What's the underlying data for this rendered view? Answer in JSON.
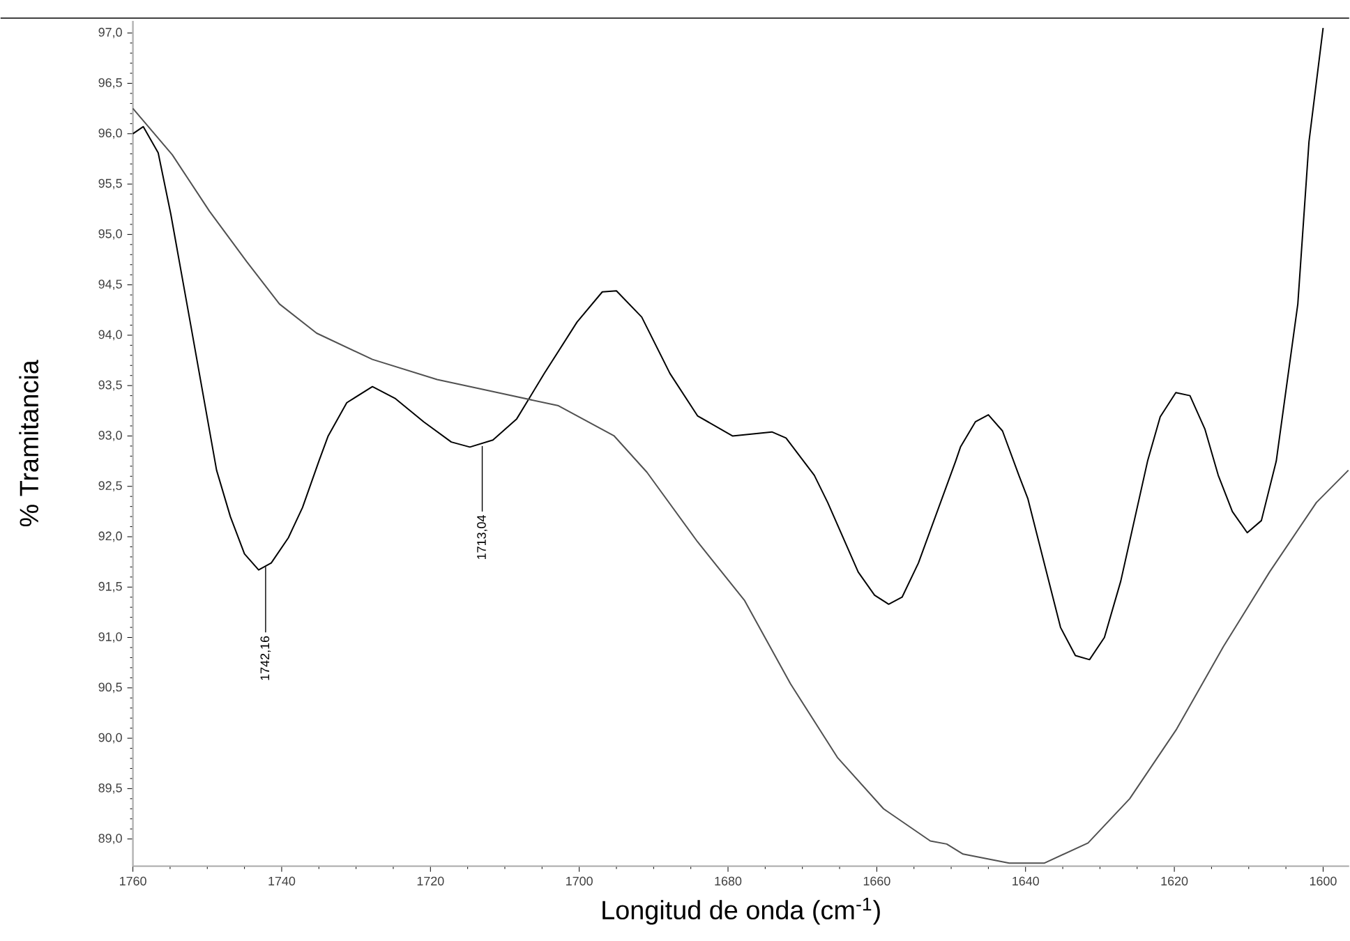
{
  "chart_data": {
    "type": "line",
    "xlabel": "Longitud de onda (cm$^{-1}$)",
    "ylabel": "% Tramitancia",
    "xlim": [
      1760,
      1596.5
    ],
    "ylim": [
      88.73,
      97.12
    ],
    "xticks": [
      1760,
      1740,
      1720,
      1700,
      1680,
      1660,
      1640,
      1620,
      1600
    ],
    "yticks": [
      {
        "value": 89.0,
        "label": "89,0"
      },
      {
        "value": 89.5,
        "label": "89,5"
      },
      {
        "value": 90.0,
        "label": "90,0"
      },
      {
        "value": 90.5,
        "label": "90,5"
      },
      {
        "value": 91.0,
        "label": "91,0"
      },
      {
        "value": 91.5,
        "label": "91,5"
      },
      {
        "value": 92.0,
        "label": "92,0"
      },
      {
        "value": 92.5,
        "label": "92,5"
      },
      {
        "value": 93.0,
        "label": "93,0"
      },
      {
        "value": 93.5,
        "label": "93,5"
      },
      {
        "value": 94.0,
        "label": "94,0"
      },
      {
        "value": 94.5,
        "label": "94,5"
      },
      {
        "value": 95.0,
        "label": "95,0"
      },
      {
        "value": 95.5,
        "label": "95,5"
      },
      {
        "value": 96.0,
        "label": "96,0"
      },
      {
        "value": 96.5,
        "label": "96,5"
      },
      {
        "value": 97.0,
        "label": "97,0"
      }
    ],
    "grid": false,
    "marker": "none",
    "line_style": "solid",
    "annotations": [
      {
        "text": "1742,16",
        "x": 1742.16,
        "y": 91.7
      },
      {
        "text": "1713,04",
        "x": 1713.04,
        "y": 92.9
      }
    ],
    "series": [
      {
        "color": "#000000",
        "x": [
          1760,
          1758.6,
          1756.6,
          1754.9,
          1752.2,
          1748.75,
          1746.9,
          1745.0,
          1743.1,
          1741.4,
          1739.1,
          1737.2,
          1735.0,
          1733.75,
          1731.25,
          1727.8,
          1724.7,
          1720.9,
          1717.2,
          1714.7,
          1711.6,
          1708.4,
          1704.7,
          1700.3,
          1696.9,
          1695.0,
          1691.6,
          1687.8,
          1684.1,
          1679.4,
          1674.1,
          1672.2,
          1668.4,
          1666.6,
          1662.5,
          1660.3,
          1658.4,
          1656.6,
          1654.4,
          1649.4,
          1648.75,
          1646.75,
          1645.0,
          1643.1,
          1640.9,
          1639.7,
          1635.3,
          1633.3,
          1631.4,
          1629.4,
          1627.2,
          1623.6,
          1621.9,
          1619.8,
          1617.9,
          1615.9,
          1614.1,
          1612.2,
          1610.2,
          1608.3,
          1606.3,
          1603.4,
          1601.9,
          1600.0
        ],
        "values": [
          96.0,
          96.07,
          95.81,
          95.2,
          94.09,
          92.66,
          92.2,
          91.83,
          91.67,
          91.74,
          91.99,
          92.29,
          92.75,
          93.0,
          93.33,
          93.49,
          93.37,
          93.14,
          92.94,
          92.89,
          92.96,
          93.17,
          93.62,
          94.13,
          94.43,
          94.44,
          94.18,
          93.62,
          93.2,
          93.0,
          93.04,
          92.98,
          92.61,
          92.34,
          91.65,
          91.42,
          91.33,
          91.4,
          91.74,
          92.75,
          92.89,
          93.14,
          93.21,
          93.05,
          92.61,
          92.38,
          91.1,
          90.82,
          90.78,
          91.0,
          91.56,
          92.75,
          93.19,
          93.43,
          93.4,
          93.07,
          92.61,
          92.25,
          92.04,
          92.16,
          92.75,
          94.31,
          95.92,
          97.05
        ]
      },
      {
        "color": "#505050",
        "x": [
          1760,
          1754.7,
          1749.7,
          1744.7,
          1740.3,
          1735.3,
          1727.8,
          1719.1,
          1710.3,
          1702.8,
          1695.3,
          1690.9,
          1684.1,
          1677.8,
          1671.6,
          1665.3,
          1659.1,
          1652.8,
          1650.6,
          1648.4,
          1642.2,
          1637.5,
          1631.6,
          1626.0,
          1619.7,
          1613.4,
          1607.2,
          1600.9,
          1596.6
        ],
        "values": [
          96.25,
          95.79,
          95.23,
          94.73,
          94.31,
          94.02,
          93.76,
          93.56,
          93.42,
          93.3,
          93.0,
          92.64,
          91.95,
          91.37,
          90.54,
          89.81,
          89.3,
          88.98,
          88.95,
          88.85,
          88.76,
          88.76,
          88.96,
          89.4,
          90.09,
          90.91,
          91.65,
          92.34,
          92.66
        ]
      }
    ]
  }
}
